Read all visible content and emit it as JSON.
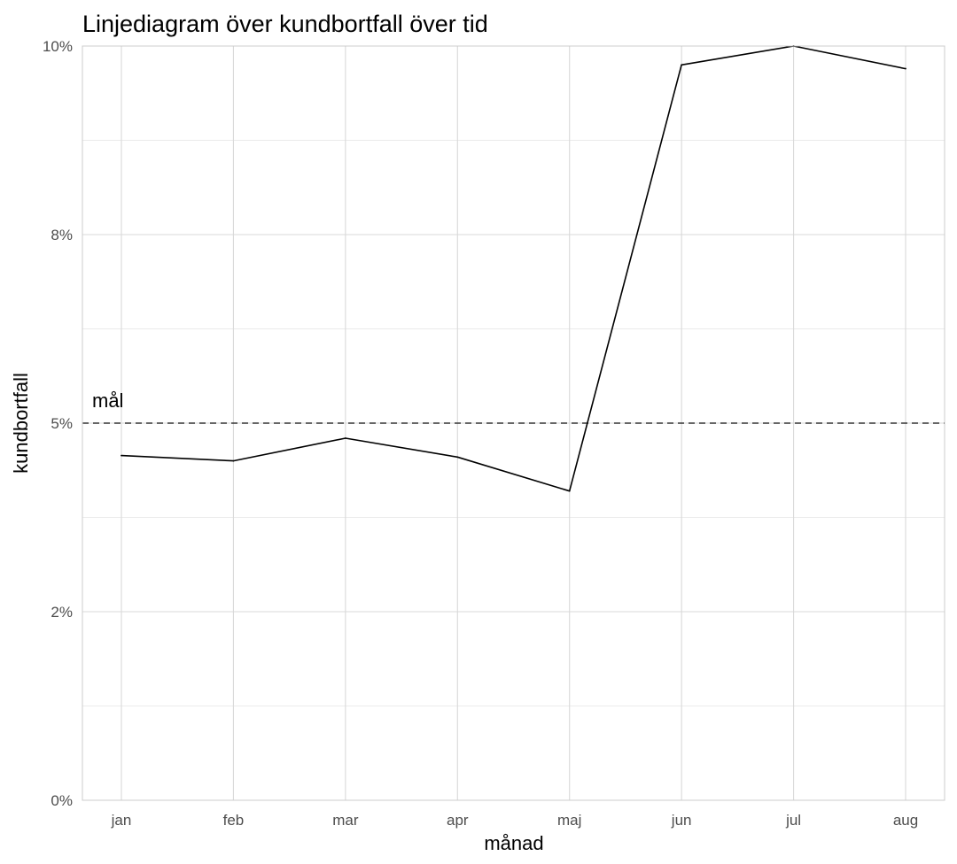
{
  "chart_data": {
    "type": "line",
    "title": "Linjediagram över kundbortfall över tid",
    "xlabel": "månad",
    "ylabel": "kundbortfall",
    "categories": [
      "jan",
      "feb",
      "mar",
      "apr",
      "maj",
      "jun",
      "jul",
      "aug"
    ],
    "series": [
      {
        "values": [
          4.57,
          4.5,
          4.8,
          4.55,
          4.1,
          9.75,
          10.0,
          9.7
        ]
      }
    ],
    "ylim": [
      0,
      10
    ],
    "y_ticks": [
      0,
      2.5,
      5,
      7.5,
      10
    ],
    "y_tick_labels": [
      "0%",
      "2%",
      "5%",
      "8%",
      "10%"
    ],
    "reference_line": {
      "y": 5,
      "style": "dashed",
      "label": "mål"
    },
    "grid": true,
    "line_color": "#000000"
  }
}
